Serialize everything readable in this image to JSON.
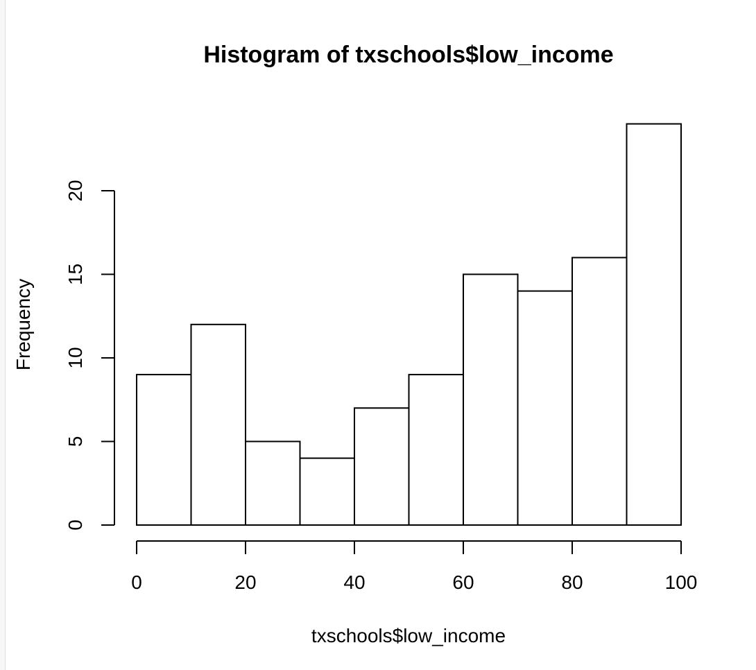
{
  "chart_data": {
    "type": "bar",
    "title": "Histogram of txschools$low_income",
    "xlabel": "txschools$low_income",
    "ylabel": "Frequency",
    "bins": [
      {
        "from": 0,
        "to": 10,
        "count": 9
      },
      {
        "from": 10,
        "to": 20,
        "count": 12
      },
      {
        "from": 20,
        "to": 30,
        "count": 5
      },
      {
        "from": 30,
        "to": 40,
        "count": 4
      },
      {
        "from": 40,
        "to": 50,
        "count": 7
      },
      {
        "from": 50,
        "to": 60,
        "count": 9
      },
      {
        "from": 60,
        "to": 70,
        "count": 15
      },
      {
        "from": 70,
        "to": 80,
        "count": 14
      },
      {
        "from": 80,
        "to": 90,
        "count": 16
      },
      {
        "from": 90,
        "to": 100,
        "count": 24
      }
    ],
    "xlim": [
      0,
      100
    ],
    "ylim": [
      0,
      24
    ],
    "x_ticks": [
      0,
      20,
      40,
      60,
      80,
      100
    ],
    "x_tick_labels": [
      "0",
      "20",
      "40",
      "60",
      "80",
      "100"
    ],
    "y_ticks": [
      0,
      5,
      10,
      15,
      20
    ],
    "y_tick_labels": [
      "0",
      "5",
      "10",
      "15",
      "20"
    ],
    "grid": false,
    "legend": "none",
    "bar_fill": "#ffffff",
    "bar_stroke": "#000000"
  }
}
